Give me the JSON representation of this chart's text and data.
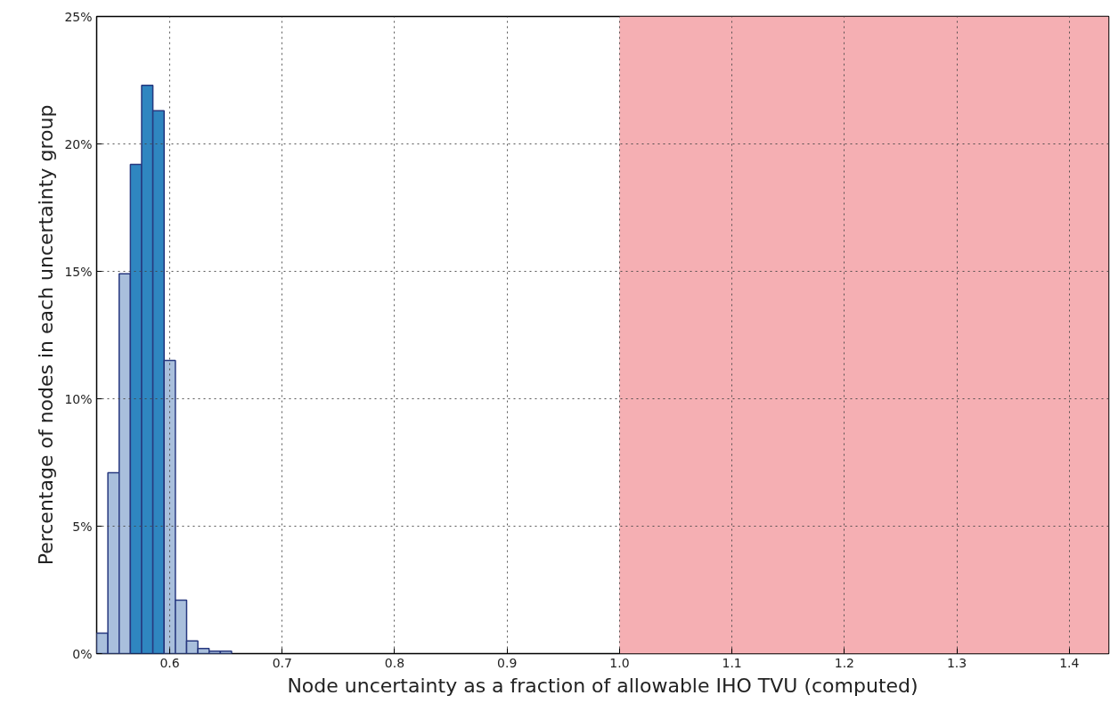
{
  "chart_data": {
    "type": "histogram",
    "xlabel": "Node uncertainty as a fraction of allowable IHO TVU (computed)",
    "ylabel": "Percentage of nodes in each uncertainty group",
    "bins": [
      0.535,
      0.545,
      0.555,
      0.565,
      0.575,
      0.585,
      0.595,
      0.605,
      0.615,
      0.625,
      0.635,
      0.645,
      0.655
    ],
    "values": [
      0.8,
      7.1,
      14.9,
      19.2,
      22.3,
      21.3,
      11.5,
      2.1,
      0.5,
      0.2,
      0.1,
      0.1
    ],
    "colors": [
      "#a9bfdc",
      "#a9bfdc",
      "#a9bfdc",
      "#2f86c0",
      "#2f86c0",
      "#2f86c0",
      "#a9bfdc",
      "#a9bfdc",
      "#a9bfdc",
      "#a9bfdc",
      "#a9bfdc",
      "#a9bfdc"
    ],
    "xlim": [
      0.535,
      1.435
    ],
    "ylim": [
      0,
      25
    ],
    "xticks": [
      0.6,
      0.7,
      0.8,
      0.9,
      {
        "value": 1.0,
        "label": "1.0"
      },
      1.1,
      1.2,
      1.3,
      1.4
    ],
    "yticks": [
      {
        "value": 0,
        "label": "0%"
      },
      {
        "value": 5,
        "label": "5%"
      },
      {
        "value": 10,
        "label": "10%"
      },
      {
        "value": 15,
        "label": "15%"
      },
      {
        "value": 20,
        "label": "20%"
      },
      {
        "value": 25,
        "label": "25%"
      }
    ],
    "bands": [
      {
        "axis": "x",
        "from": 1.0,
        "to": 1.435,
        "color": "#f5afb3"
      }
    ],
    "grid": true
  }
}
